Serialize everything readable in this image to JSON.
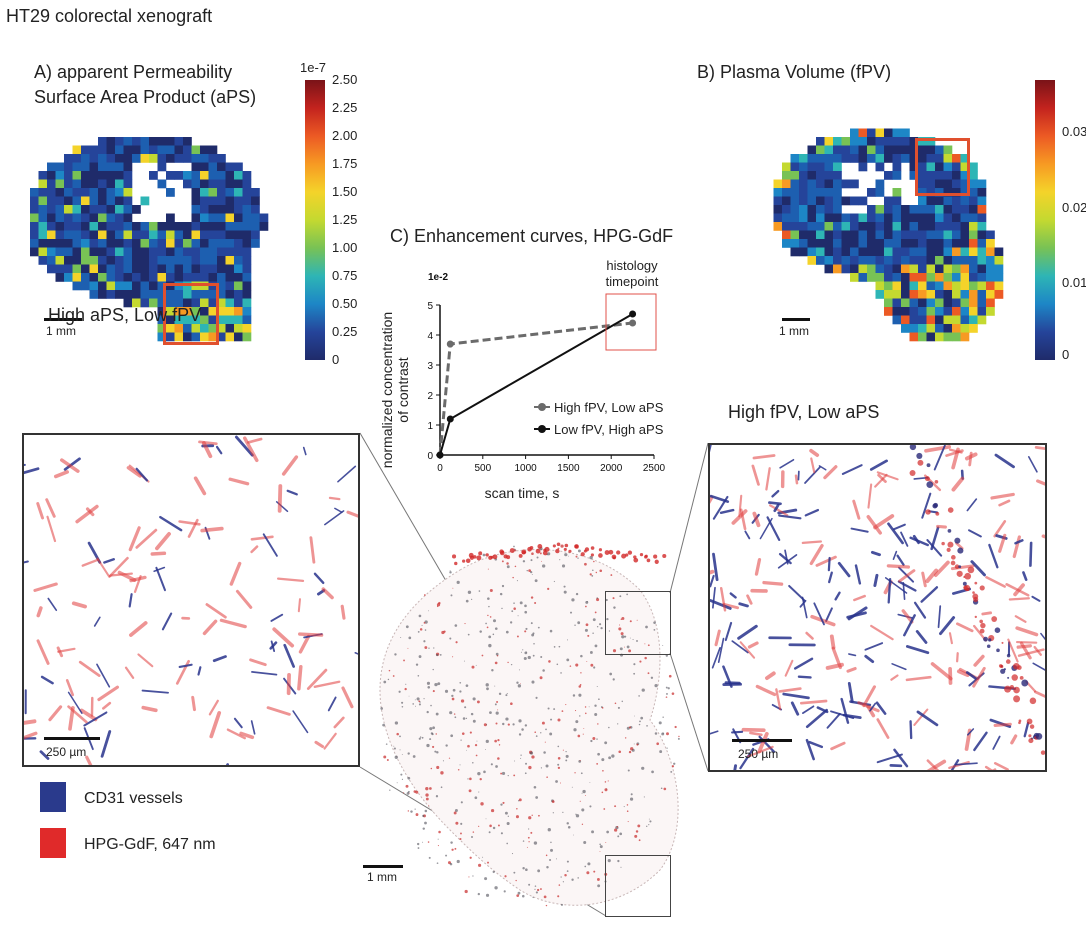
{
  "figure_title": "HT29 colorectal xenograft",
  "panel_a": {
    "title_line1": "A) apparent Permeability",
    "title_line2": "Surface Area Product (aPS)",
    "colorbar": {
      "exponent": "1e-7",
      "ticks": [
        "2.50",
        "2.25",
        "2.00",
        "1.75",
        "1.50",
        "1.25",
        "1.00",
        "0.75",
        "0.50",
        "0.25",
        "0"
      ]
    },
    "scale_bar": "1 mm"
  },
  "panel_b": {
    "title": "B) Plasma Volume (fPV)",
    "colorbar": {
      "ticks": [
        "0.03",
        "0.02",
        "0.01",
        "0"
      ]
    },
    "scale_bar": "1 mm"
  },
  "chart_data": {
    "type": "line",
    "title": "C) Enhancement curves, HPG-GdF",
    "xlabel": "scan time, s",
    "ylabel_line1": "normalized concentration",
    "ylabel_line2": "of contrast",
    "y_exponent": "1e-2",
    "xlim": [
      0,
      2500
    ],
    "ylim": [
      0,
      5
    ],
    "x_ticks": [
      "0",
      "500",
      "1000",
      "1500",
      "2000",
      "2500"
    ],
    "y_ticks": [
      "0",
      "1",
      "2",
      "3",
      "4",
      "5"
    ],
    "annotation_line1": "histology",
    "annotation_line2": "timepoint",
    "legend_position": "lower-right",
    "series": [
      {
        "name": "High fPV, Low aPS",
        "color": "#6b6b6b",
        "dashed": true,
        "points": [
          [
            0,
            0
          ],
          [
            120,
            3.7
          ],
          [
            2250,
            4.4
          ]
        ]
      },
      {
        "name": "Low fPV, High aPS",
        "color": "#111111",
        "dashed": false,
        "points": [
          [
            0,
            0
          ],
          [
            120,
            1.2
          ],
          [
            2250,
            4.7
          ]
        ]
      }
    ]
  },
  "histology": {
    "left_title": "High aPS, Low fPV",
    "right_title": "High fPV, Low aPS",
    "left_scale": "250 µm",
    "right_scale": "250 µm",
    "center_scale": "1 mm"
  },
  "legend": {
    "items": [
      {
        "label": "CD31 vessels",
        "color": "#2a3a8c"
      },
      {
        "label": "HPG-GdF, 647 nm",
        "color": "#e02a2a"
      }
    ]
  }
}
